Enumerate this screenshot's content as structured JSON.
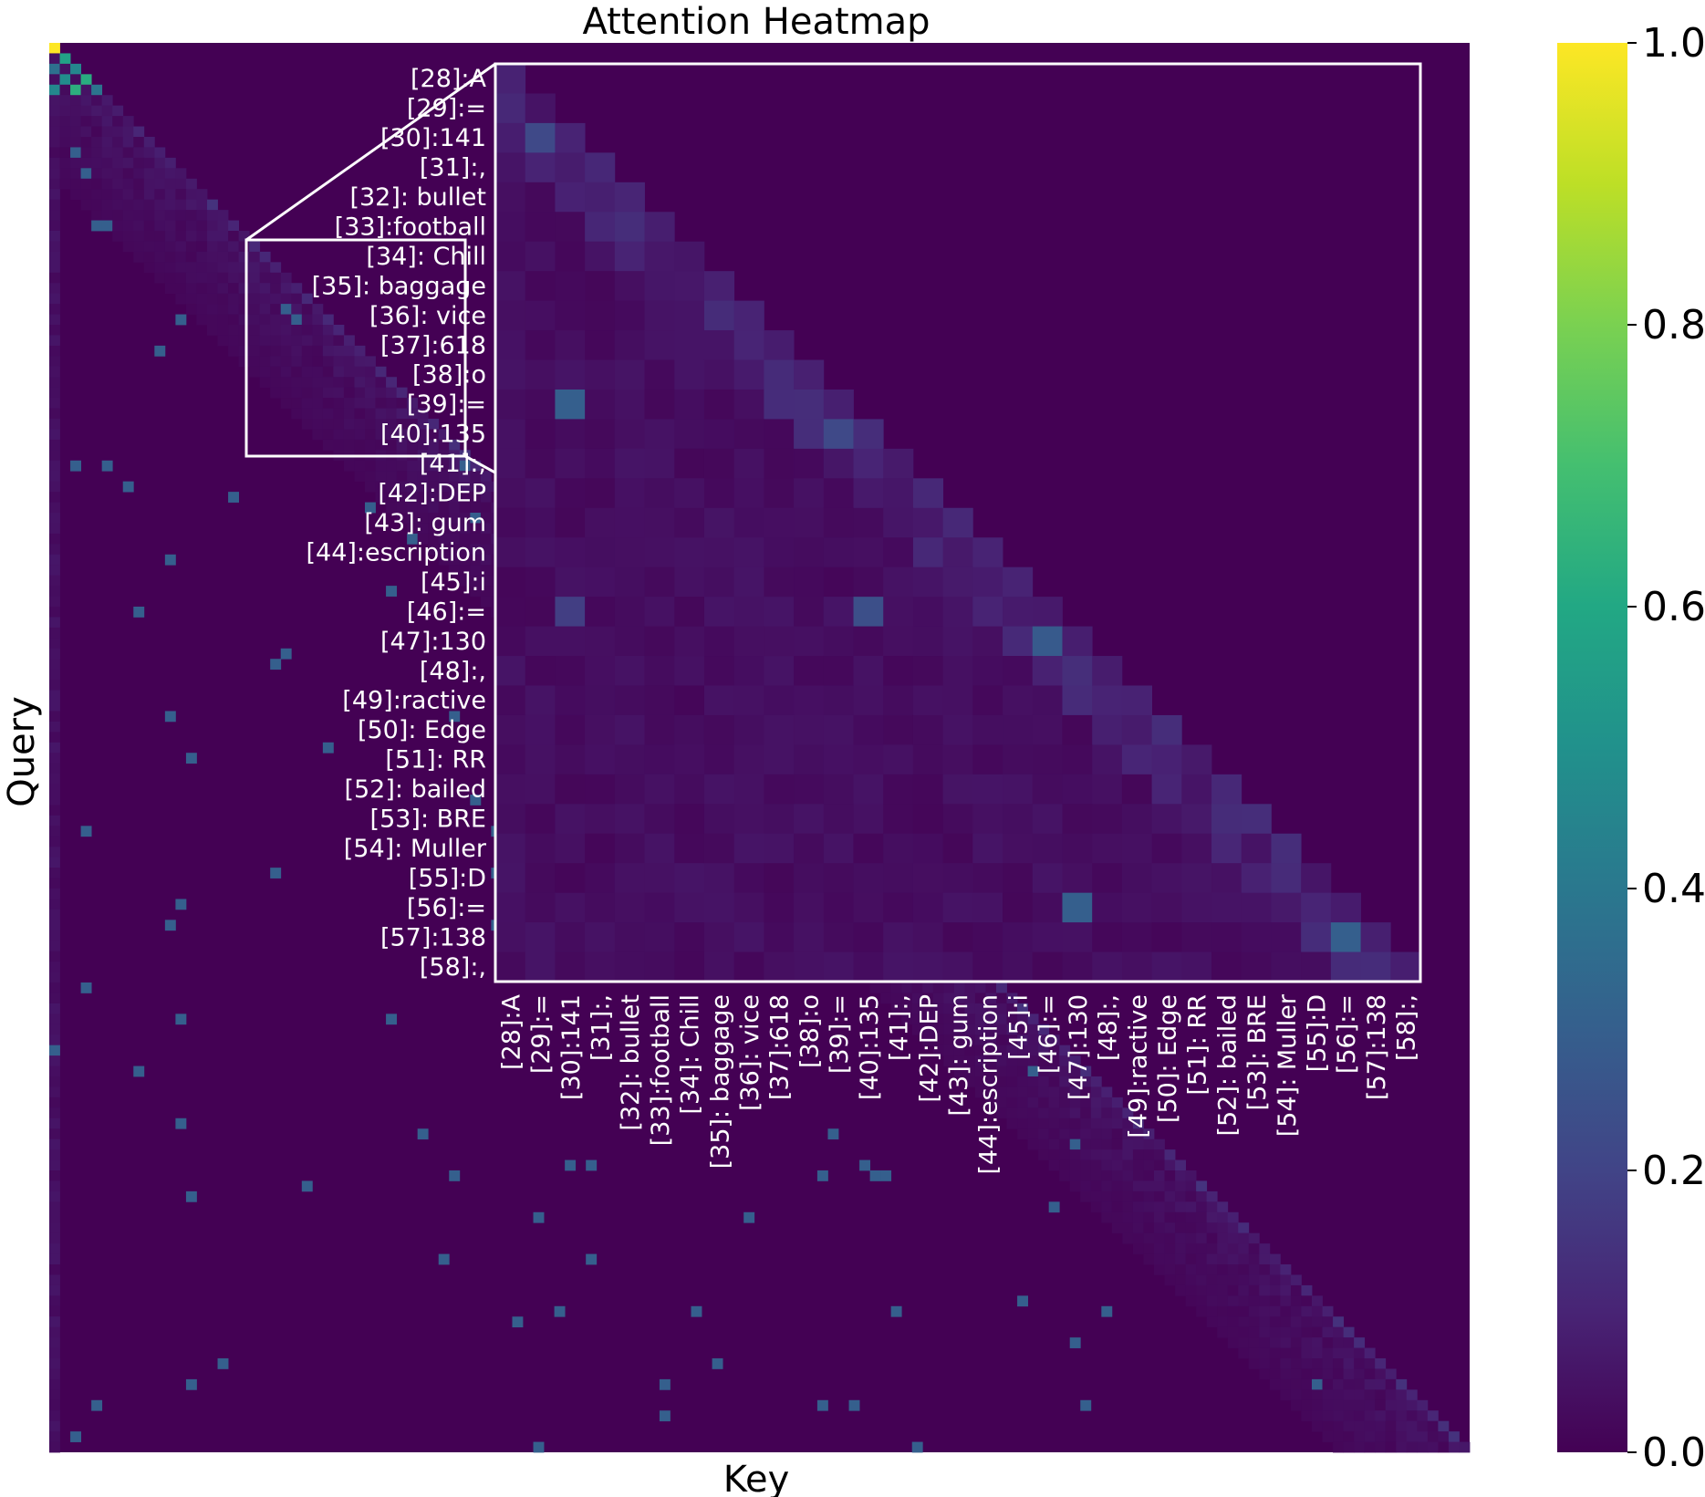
{
  "chart_data": {
    "type": "heatmap",
    "title": "Attention Heatmap",
    "xlabel": "Key",
    "ylabel": "Query",
    "colormap": "viridis",
    "colorbar": {
      "vmin": 0.0,
      "vmax": 1.0,
      "ticks": [
        "0.0",
        "0.2",
        "0.4",
        "0.6",
        "0.8",
        "1.0"
      ]
    },
    "main_matrix": {
      "size": 135,
      "note_values": "lower-triangular causal attention; first key column strongest; first cell = 1.0"
    },
    "inset": {
      "token_range": [
        28,
        58
      ],
      "tokens": [
        "[28]:A",
        "[29]:=",
        "[30]:141",
        "[31]:,",
        "[32]: bullet",
        "[33]:football",
        "[34]: Chill",
        "[35]: baggage",
        "[36]: vice",
        "[37]:618",
        "[38]:o",
        "[39]:=",
        "[40]:135",
        "[41]:,",
        "[42]:DEP",
        "[43]: gum",
        "[44]:escription",
        "[45]:i",
        "[46]:=",
        "[47]:130",
        "[48]:,",
        "[49]:ractive",
        "[50]: Edge",
        "[51]: RR",
        "[52]: bailed",
        "[53]: BRE",
        "[54]: Muller",
        "[55]:D",
        "[56]:=",
        "[57]:138",
        "[58]:,"
      ],
      "highlight_cells": [
        {
          "query": "[30]:141",
          "key": "[29]:=",
          "value": 0.22
        },
        {
          "query": "[39]:=",
          "key": "[30]:141",
          "value": 0.3
        },
        {
          "query": "[40]:135",
          "key": "[39]:=",
          "value": 0.22
        },
        {
          "query": "[46]:=",
          "key": "[30]:141",
          "value": 0.18
        },
        {
          "query": "[46]:=",
          "key": "[40]:135",
          "value": 0.24
        },
        {
          "query": "[47]:130",
          "key": "[46]:=",
          "value": 0.28
        },
        {
          "query": "[56]:=",
          "key": "[47]:130",
          "value": 0.3
        },
        {
          "query": "[57]:138",
          "key": "[56]:=",
          "value": 0.3
        }
      ]
    }
  }
}
